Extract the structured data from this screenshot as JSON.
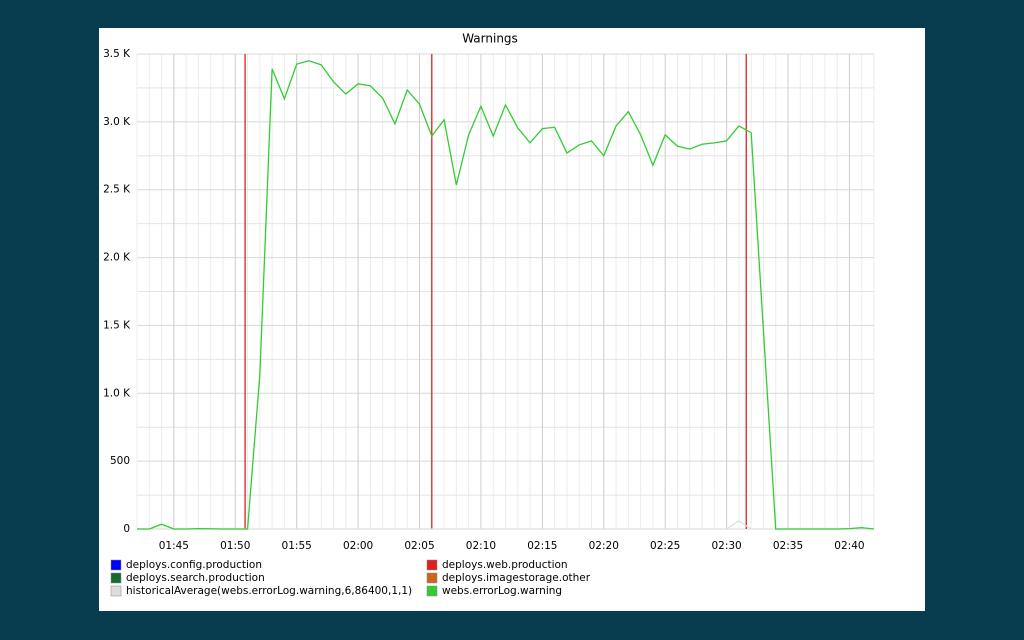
{
  "chart_data": {
    "type": "line",
    "title": "Warnings",
    "x": [
      102,
      103,
      104,
      105,
      106,
      107,
      108,
      109,
      110,
      111,
      112,
      113,
      114,
      115,
      116,
      117,
      118,
      119,
      120,
      121,
      122,
      123,
      124,
      125,
      126,
      127,
      128,
      129,
      130,
      131,
      132,
      133,
      134,
      135,
      136,
      137,
      138,
      139,
      140,
      141,
      142,
      143,
      144,
      145,
      146,
      147,
      148,
      149,
      150,
      151,
      152,
      153,
      154,
      155,
      156,
      157,
      158,
      159,
      160,
      161,
      162
    ],
    "xlim": [
      102,
      162
    ],
    "xticks": [
      {
        "value": 105,
        "label": "01:45"
      },
      {
        "value": 110,
        "label": "01:50"
      },
      {
        "value": 115,
        "label": "01:55"
      },
      {
        "value": 120,
        "label": "02:00"
      },
      {
        "value": 125,
        "label": "02:05"
      },
      {
        "value": 130,
        "label": "02:10"
      },
      {
        "value": 135,
        "label": "02:15"
      },
      {
        "value": 140,
        "label": "02:20"
      },
      {
        "value": 145,
        "label": "02:25"
      },
      {
        "value": 150,
        "label": "02:30"
      },
      {
        "value": 155,
        "label": "02:35"
      },
      {
        "value": 160,
        "label": "02:40"
      }
    ],
    "ylim": [
      0,
      3500
    ],
    "yticks": [
      0,
      500,
      {
        "value": 1000,
        "label": "1.0 K"
      },
      {
        "value": 1500,
        "label": "1.5 K"
      },
      {
        "value": 2000,
        "label": "2.0 K"
      },
      {
        "value": 2500,
        "label": "2.5 K"
      },
      {
        "value": 3000,
        "label": "3.0 K"
      },
      {
        "value": 3500,
        "label": "3.5 K"
      }
    ],
    "grid": true,
    "minor_grid": true,
    "series": [
      {
        "name": "deploys.config.production",
        "color": "#0000ff"
      },
      {
        "name": "deploys.web.production",
        "color": "#e02020",
        "events": [
          110.8,
          126,
          151.6
        ]
      },
      {
        "name": "deploys.search.production",
        "color": "#146b2e"
      },
      {
        "name": "deploys.imagestorage.other",
        "color": "#c8661a"
      },
      {
        "name": "historicalAverage(webs.errorLog.warning,6,86400,1,1)",
        "color": "#dddddd",
        "values": [
          0,
          0,
          0,
          0,
          0,
          0,
          0,
          0,
          0,
          0,
          0,
          0,
          0,
          0,
          0,
          0,
          0,
          0,
          0,
          0,
          0,
          0,
          0,
          0,
          0,
          0,
          0,
          0,
          0,
          0,
          0,
          0,
          0,
          0,
          0,
          0,
          0,
          0,
          0,
          0,
          0,
          0,
          0,
          0,
          0,
          0,
          0,
          0,
          0,
          60,
          0,
          0,
          0,
          0,
          0,
          0,
          0,
          0,
          0,
          0,
          0
        ]
      },
      {
        "name": "webs.errorLog.warning",
        "color": "#33cc33",
        "values": [
          0,
          0,
          35,
          0,
          0,
          3,
          2,
          0,
          0,
          0,
          1135,
          3390,
          3170,
          3425,
          3450,
          3420,
          3295,
          3205,
          3280,
          3265,
          3175,
          2985,
          3235,
          3130,
          2895,
          3015,
          2535,
          2905,
          3115,
          2895,
          3125,
          2955,
          2845,
          2950,
          2960,
          2770,
          2830,
          2860,
          2750,
          2970,
          3075,
          2905,
          2680,
          2905,
          2820,
          2800,
          2835,
          2845,
          2860,
          2970,
          2920,
          1460,
          0,
          0,
          0,
          0,
          0,
          0,
          3,
          10,
          0
        ]
      }
    ]
  }
}
